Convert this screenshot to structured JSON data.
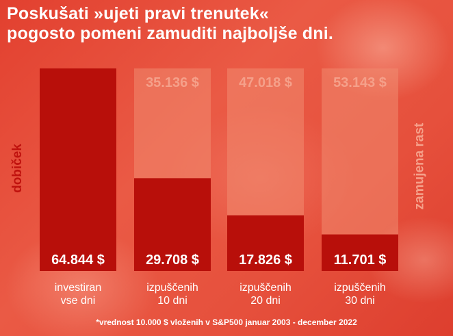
{
  "title_lines": [
    "Poskušati »ujeti pravi trenutek«",
    "pogosto pomeni zamuditi najboljše dni."
  ],
  "footnote": "*vrednost 10.000 $ vloženih v S&P500 januar 2003 - december 2022",
  "colors": {
    "gain": "#b80f0a",
    "missed": "#f08a6f",
    "missed_text": "#f5a08a",
    "label_text": "#ffffff"
  },
  "chart_data": {
    "type": "bar",
    "categories": [
      "investiran\nvse dni",
      "izpuščenih\n10 dni",
      "izpuščenih\n20 dni",
      "izpuščenih\n30 dni"
    ],
    "series": [
      {
        "name": "dobiček",
        "values": [
          64844,
          29708,
          17826,
          11701
        ],
        "labels": [
          "64.844 $",
          "29.708 $",
          "17.826 $",
          "11.701 $"
        ]
      },
      {
        "name": "zamujena rast",
        "values": [
          0,
          35136,
          47018,
          53143
        ],
        "labels": [
          "",
          "35.136 $",
          "47.018 $",
          "53.143 $"
        ]
      }
    ],
    "stacked": true,
    "ylim": [
      0,
      64844
    ],
    "grid": false
  }
}
